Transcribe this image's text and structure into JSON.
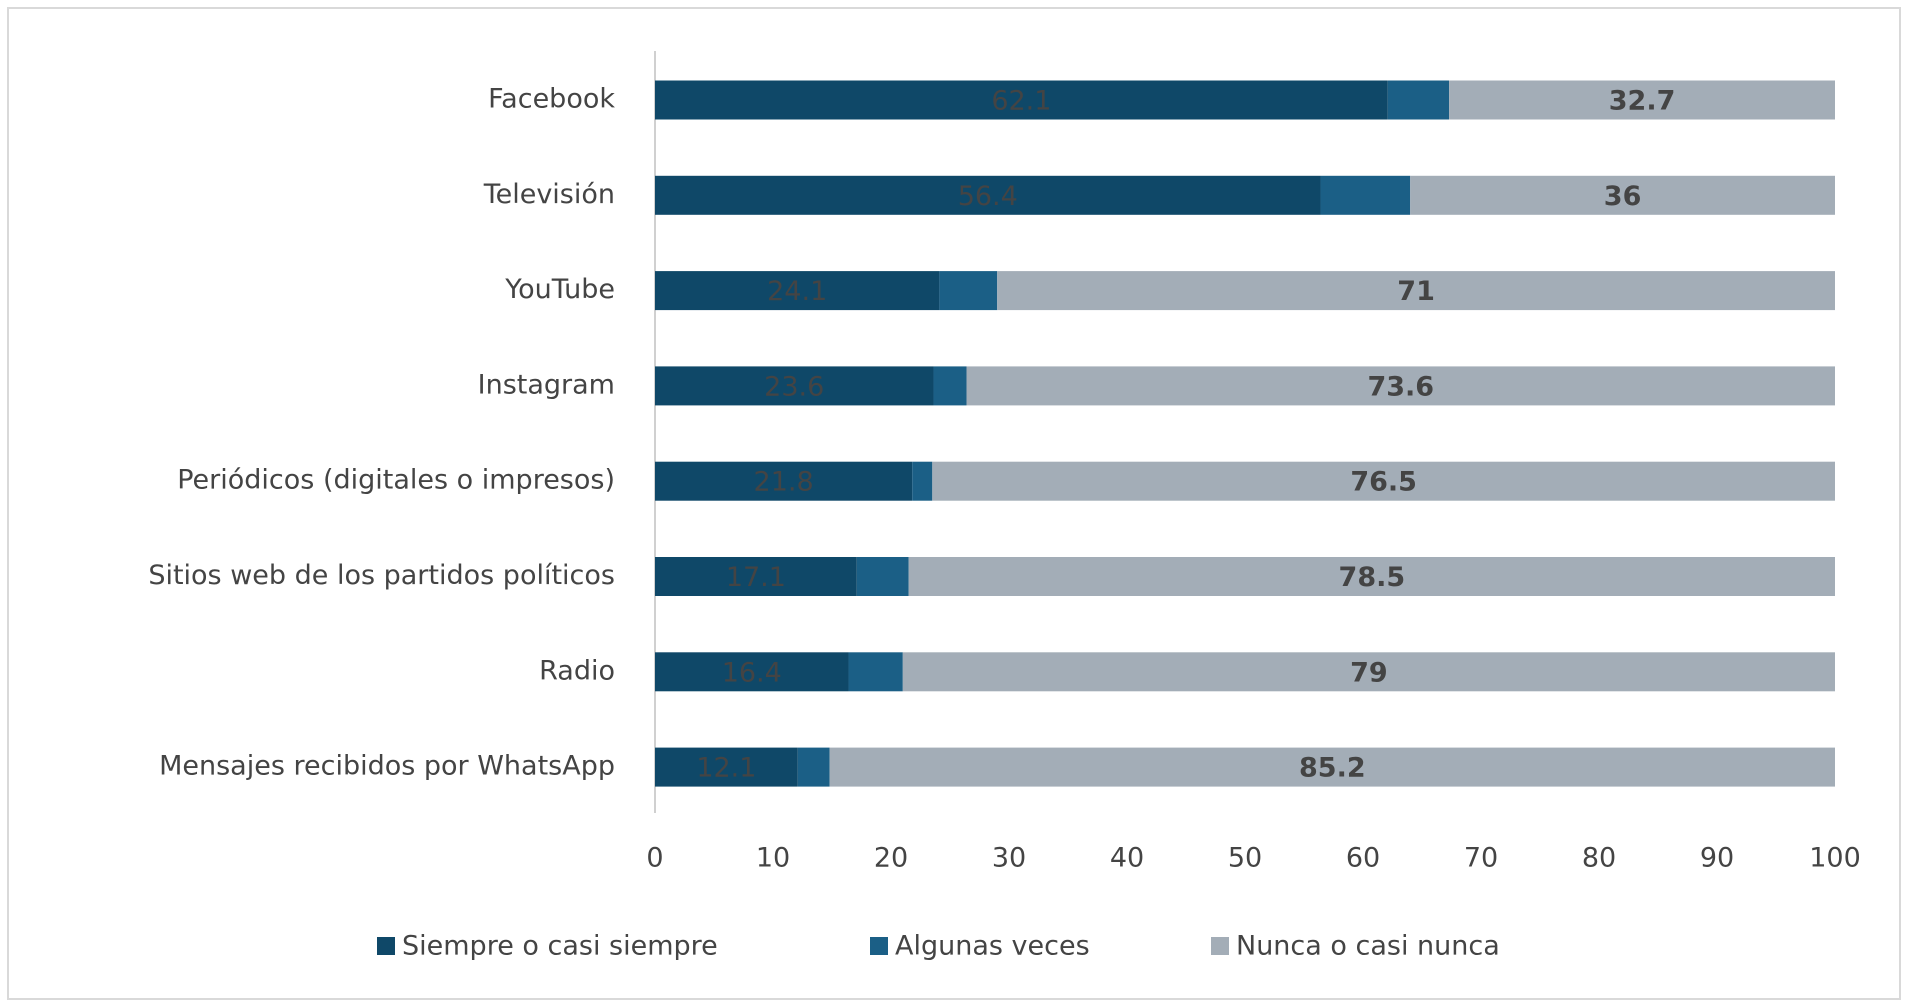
{
  "chart_data": {
    "type": "stacked_barh",
    "categories": [
      "Facebook",
      "Televisión",
      "YouTube",
      "Instagram",
      "Periódicos (digitales o impresos)",
      "Sitios web de los partidos políticos",
      "Radio",
      "Mensajes recibidos por WhatsApp"
    ],
    "series": [
      {
        "name": "Siempre o casi siempre",
        "color": "#0f4868",
        "show_labels": true,
        "label_color": "#ffffff",
        "values": [
          62.1,
          56.4,
          24.1,
          23.6,
          21.8,
          17.1,
          16.4,
          12.1
        ]
      },
      {
        "name": "Algunas veces",
        "color": "#1b5f86",
        "show_labels": false,
        "label_color": "#ffffff",
        "values": [
          5.2,
          7.6,
          4.9,
          2.8,
          1.7,
          4.4,
          4.6,
          2.7
        ]
      },
      {
        "name": "Nunca o casi nunca",
        "color": "#a3adb7",
        "show_labels": true,
        "label_color": "#2f3a44",
        "values": [
          32.7,
          36,
          71,
          73.6,
          76.5,
          78.5,
          79,
          85.2
        ]
      }
    ],
    "xlim": [
      0,
      100
    ],
    "xticks": [
      0,
      10,
      20,
      30,
      40,
      50,
      60,
      70,
      80,
      90,
      100
    ],
    "legend": "bottom"
  }
}
